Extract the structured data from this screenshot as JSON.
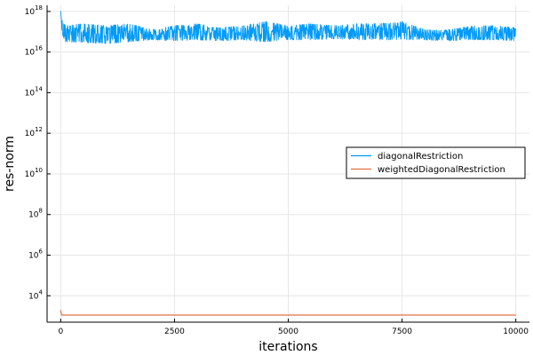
{
  "chart_data": {
    "type": "line",
    "title": "",
    "xlabel": "iterations",
    "ylabel": "res-norm",
    "xlim": [
      -300,
      10300
    ],
    "ylim_log10": [
      2.7,
      18.3
    ],
    "y_scale": "log",
    "x_ticks": [
      0,
      2500,
      5000,
      7500,
      10000
    ],
    "y_ticks": [
      {
        "exp": 4,
        "base": "10",
        "sup": "4"
      },
      {
        "exp": 6,
        "base": "10",
        "sup": "6"
      },
      {
        "exp": 8,
        "base": "10",
        "sup": "8"
      },
      {
        "exp": 10,
        "base": "10",
        "sup": "10"
      },
      {
        "exp": 12,
        "base": "10",
        "sup": "12"
      },
      {
        "exp": 14,
        "base": "10",
        "sup": "14"
      },
      {
        "exp": 16,
        "base": "10",
        "sup": "16"
      },
      {
        "exp": 18,
        "base": "10",
        "sup": "18"
      }
    ],
    "grid": true,
    "legend_position": "right",
    "series": [
      {
        "name": "diagonalRestriction",
        "color": "#009af9",
        "noisy_band": true,
        "x": [
          0,
          30,
          100,
          500,
          1000,
          1500,
          2000,
          2500,
          3000,
          3500,
          4000,
          4500,
          5000,
          5500,
          6000,
          6500,
          7000,
          7500,
          8000,
          8500,
          9000,
          9500,
          10000
        ],
        "log10_low": [
          18.0,
          16.9,
          16.5,
          16.45,
          16.4,
          16.5,
          16.6,
          16.55,
          16.6,
          16.55,
          16.6,
          16.5,
          16.6,
          16.6,
          16.65,
          16.6,
          16.6,
          16.6,
          16.6,
          16.55,
          16.6,
          16.6,
          16.55
        ],
        "log10_high": [
          18.0,
          17.6,
          17.3,
          17.4,
          17.3,
          17.4,
          17.1,
          17.3,
          17.4,
          17.2,
          17.3,
          17.5,
          17.3,
          17.4,
          17.3,
          17.4,
          17.4,
          17.5,
          17.1,
          17.1,
          17.3,
          17.3,
          17.2
        ]
      },
      {
        "name": "weightedDiagonalRestriction",
        "color": "#e26f46",
        "noisy_band": false,
        "x": [
          0,
          5,
          20,
          50,
          200,
          1000,
          5000,
          10000
        ],
        "log10": [
          3.3,
          3.2,
          3.05,
          3.05,
          3.05,
          3.05,
          3.05,
          3.05
        ]
      }
    ]
  }
}
